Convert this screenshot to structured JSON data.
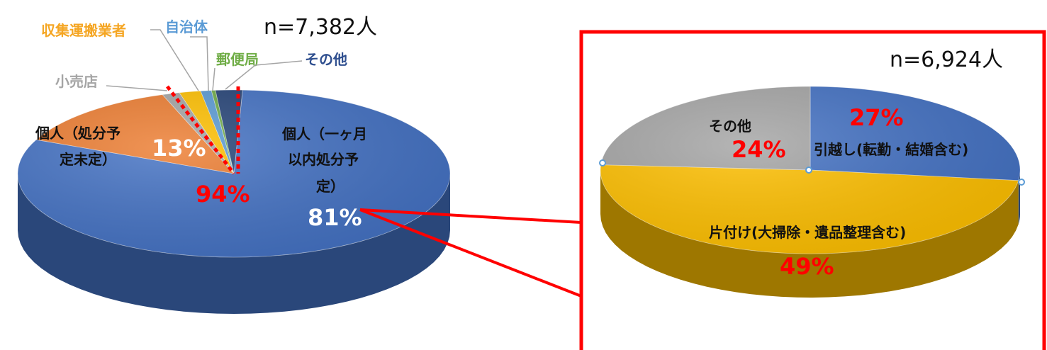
{
  "left_chart": {
    "n_label": "n=7,382人",
    "annotation_total_pct": "94%",
    "labels": {
      "individual_month_line1": "個人（一ヶ月",
      "individual_month_line2": "以内処分予",
      "individual_month_line3": "定）",
      "individual_undecided_line1": "個人（処分予",
      "individual_undecided_line2": "定未定）",
      "retailer": "小売店",
      "collector": "収集運搬業者",
      "municipality": "自治体",
      "post_office": "郵便局",
      "other": "その他"
    },
    "pct_labels": {
      "individual_month": "81%",
      "individual_undecided": "13%"
    }
  },
  "right_chart": {
    "n_label": "n=6,924人",
    "labels": {
      "moving": "引越し(転勤・結婚含む)",
      "tidying": "片付け(大掃除・遺品整理含む)",
      "other": "その他"
    },
    "pct_labels": {
      "moving": "27%",
      "tidying": "49%",
      "other": "24%"
    }
  },
  "colors": {
    "blue": "#4472c4",
    "orange": "#ed7d31",
    "gray": "#a5a5a5",
    "yellow": "#ffc000",
    "light_blue": "#5b9bd5",
    "green": "#70ad47",
    "navy": "#264478",
    "red": "#ff0000",
    "collector_text": "#f5a623",
    "municipality_text": "#5b9bd5",
    "post_office_text": "#70ad47",
    "other_text": "#2f4f8f",
    "retailer_text": "#a5a5a5"
  },
  "chart_data": [
    {
      "type": "pie",
      "title": "",
      "n": "n=7,382人",
      "slices": [
        {
          "label": "個人（一ヶ月以内処分予定）",
          "value": 81,
          "color": "#4472c4"
        },
        {
          "label": "個人（処分予定未定）",
          "value": 13,
          "color": "#ed7d31"
        },
        {
          "label": "小売店",
          "value": 1.3,
          "color": "#a5a5a5"
        },
        {
          "label": "収集運搬業者",
          "value": 1.6,
          "color": "#ffc000"
        },
        {
          "label": "自治体",
          "value": 0.8,
          "color": "#5b9bd5"
        },
        {
          "label": "郵便局",
          "value": 0.3,
          "color": "#70ad47"
        },
        {
          "label": "その他",
          "value": 2.0,
          "color": "#264478"
        }
      ],
      "annotation": "94%"
    },
    {
      "type": "pie",
      "title": "",
      "n": "n=6,924人",
      "slices": [
        {
          "label": "引越し(転勤・結婚含む)",
          "value": 27,
          "color": "#4472c4"
        },
        {
          "label": "片付け(大掃除・遺品整理含む)",
          "value": 49,
          "color": "#ffc000"
        },
        {
          "label": "その他",
          "value": 24,
          "color": "#a5a5a5"
        }
      ]
    }
  ]
}
